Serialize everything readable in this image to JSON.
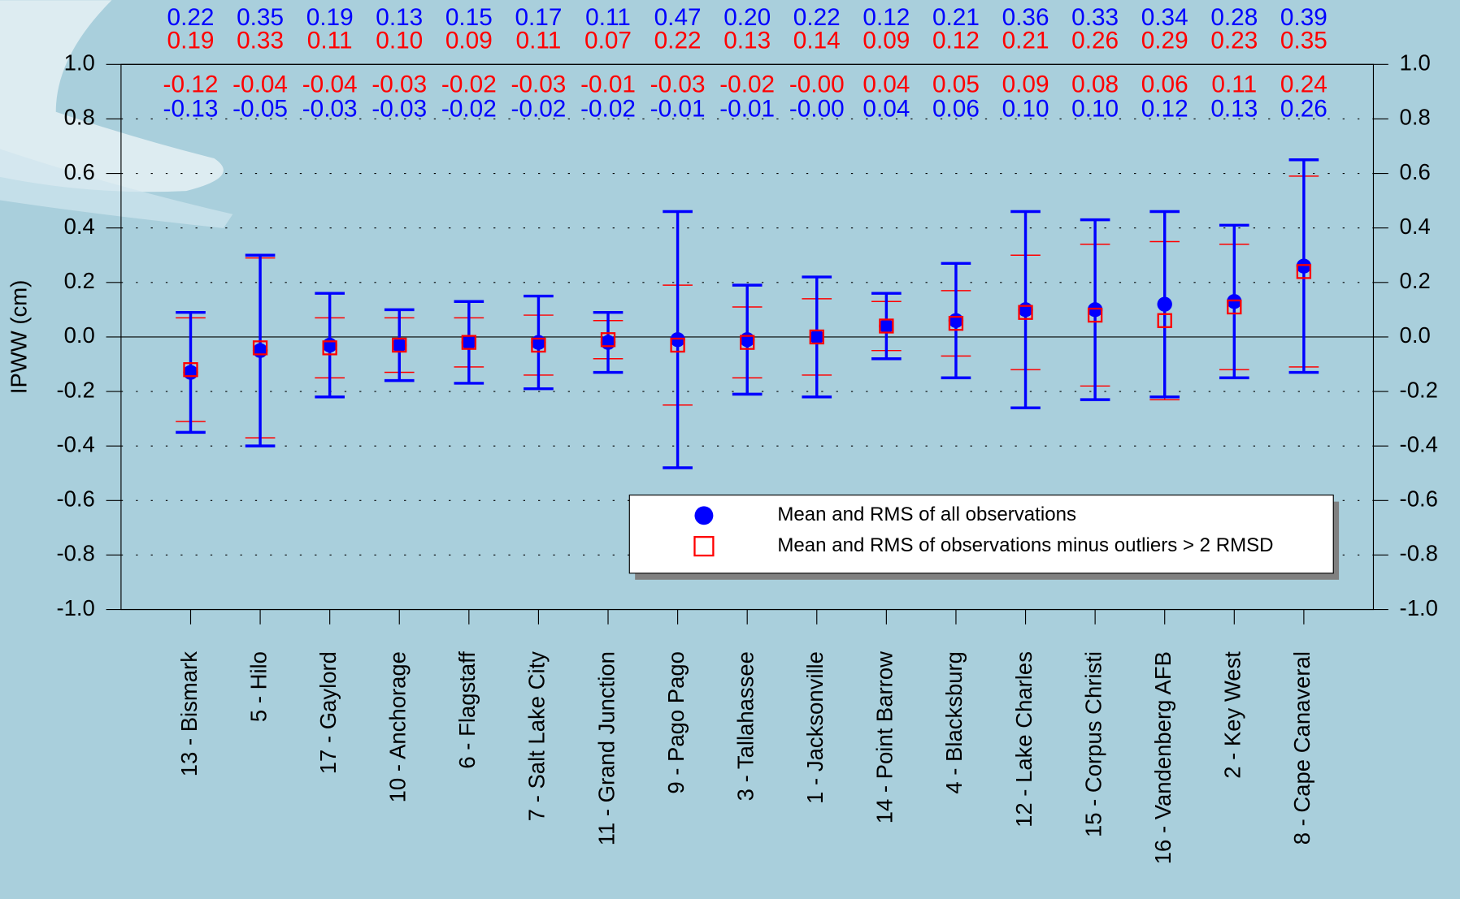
{
  "chart_data": {
    "type": "errorbar",
    "y_label": "IPWW (cm)",
    "categories": [
      "13 - Bismark",
      "5 - Hilo",
      "17 - Gaylord",
      "10 - Anchorage",
      "6 - Flagstaff",
      "7 - Salt Lake City",
      "11 - Grand Junction",
      "9 - Pago Pago",
      "3 - Tallahassee",
      "1 - Jacksonville",
      "14 - Point Barrow",
      "4 - Blacksburg",
      "12 - Lake Charles",
      "15 - Corpus Christi",
      "16 - Vandenberg AFB",
      "2 - Key West",
      "8 - Cape Canaveral"
    ],
    "series": [
      {
        "name": "Mean and RMS of all observations",
        "color": "#0000ff",
        "marker": "circle",
        "values": [
          -0.13,
          -0.05,
          -0.03,
          -0.03,
          -0.02,
          -0.02,
          -0.02,
          -0.01,
          -0.01,
          0,
          0.04,
          0.06,
          0.1,
          0.1,
          0.12,
          0.13,
          0.26
        ],
        "value_labels": [
          "-0.13",
          "-0.05",
          "-0.03",
          "-0.03",
          "-0.02",
          "-0.02",
          "-0.02",
          "-0.01",
          "-0.01",
          "-0.00",
          "0.04",
          "0.06",
          "0.10",
          "0.10",
          "0.12",
          "0.13",
          "0.26"
        ],
        "errors": [
          0.22,
          0.35,
          0.19,
          0.13,
          0.15,
          0.17,
          0.11,
          0.47,
          0.2,
          0.22,
          0.12,
          0.21,
          0.36,
          0.33,
          0.34,
          0.28,
          0.39
        ],
        "error_labels": [
          "0.22",
          "0.35",
          "0.19",
          "0.13",
          "0.15",
          "0.17",
          "0.11",
          "0.47",
          "0.20",
          "0.22",
          "0.12",
          "0.21",
          "0.36",
          "0.33",
          "0.34",
          "0.28",
          "0.39"
        ]
      },
      {
        "name": "Mean and RMS of observations minus outliers > 2 RMSD",
        "color": "#ff0000",
        "marker": "square",
        "values": [
          -0.12,
          -0.04,
          -0.04,
          -0.03,
          -0.02,
          -0.03,
          -0.01,
          -0.03,
          -0.02,
          0,
          0.04,
          0.05,
          0.09,
          0.08,
          0.06,
          0.11,
          0.24
        ],
        "value_labels": [
          "-0.12",
          "-0.04",
          "-0.04",
          "-0.03",
          "-0.02",
          "-0.03",
          "-0.01",
          "-0.03",
          "-0.02",
          "-0.00",
          "0.04",
          "0.05",
          "0.09",
          "0.08",
          "0.06",
          "0.11",
          "0.24"
        ],
        "errors": [
          0.19,
          0.33,
          0.11,
          0.1,
          0.09,
          0.11,
          0.07,
          0.22,
          0.13,
          0.14,
          0.09,
          0.12,
          0.21,
          0.26,
          0.29,
          0.23,
          0.35
        ],
        "error_labels": [
          "0.19",
          "0.33",
          "0.11",
          "0.10",
          "0.09",
          "0.11",
          "0.07",
          "0.22",
          "0.13",
          "0.14",
          "0.09",
          "0.12",
          "0.21",
          "0.26",
          "0.29",
          "0.23",
          "0.35"
        ]
      }
    ],
    "ylim": [
      -1,
      1
    ],
    "yticks": [
      {
        "value": -1,
        "label": "-1.0"
      },
      -0.8,
      -0.6,
      -0.4,
      -0.2,
      {
        "value": 0,
        "label": "0.0"
      },
      0.2,
      0.4,
      0.6,
      0.8,
      {
        "value": 1,
        "label": "1.0"
      }
    ],
    "grid": true
  }
}
